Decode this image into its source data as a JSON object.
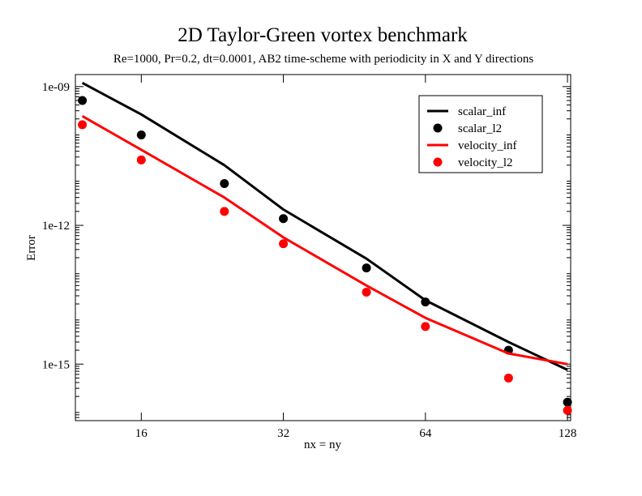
{
  "chart_data": {
    "type": "line",
    "title": "2D Taylor-Green vortex benchmark",
    "subtitle": "Re=1000, Pr=0.2, dt=0.0001, AB2 time-scheme with periodicity in X and Y directions",
    "xlabel": "nx = ny",
    "ylabel": "Error",
    "x_scale": "log2",
    "y_scale": "log10",
    "xlim": [
      11.6,
      130
    ],
    "ylim": [
      6e-17,
      1.82e-09
    ],
    "x_tick_labels": [
      "16",
      "32",
      "64",
      "128"
    ],
    "x_ticks": [
      16,
      32,
      64,
      128
    ],
    "y_tick_labels": [
      "1e-09",
      "1e-12",
      "1e-15"
    ],
    "y_ticks": [
      1e-09,
      1e-12,
      1e-15
    ],
    "grid": false,
    "legend_position": "top-right",
    "x": [
      12,
      16,
      24,
      32,
      48,
      64,
      96,
      128
    ],
    "series": [
      {
        "name": "scalar_inf",
        "style": "line",
        "color": "#000000",
        "values": [
          1.2e-09,
          2.5e-10,
          2e-11,
          2.2e-12,
          1.9e-13,
          2.4e-14,
          3e-15,
          7.5e-16
        ]
      },
      {
        "name": "scalar_l2",
        "style": "marker",
        "color": "#000000",
        "values": [
          5e-10,
          9e-11,
          8e-12,
          1.4e-12,
          1.2e-13,
          2.2e-14,
          2e-15,
          1.5e-16
        ]
      },
      {
        "name": "velocity_inf",
        "style": "line",
        "color": "#ff0000",
        "values": [
          2.3e-10,
          4.3e-11,
          4e-12,
          5.5e-13,
          5e-14,
          1e-14,
          1.7e-15,
          1e-15
        ]
      },
      {
        "name": "velocity_l2",
        "style": "marker",
        "color": "#ff0000",
        "values": [
          1.5e-10,
          2.6e-11,
          2e-12,
          4e-13,
          3.6e-14,
          6.5e-15,
          5e-16,
          1e-16
        ]
      }
    ]
  }
}
